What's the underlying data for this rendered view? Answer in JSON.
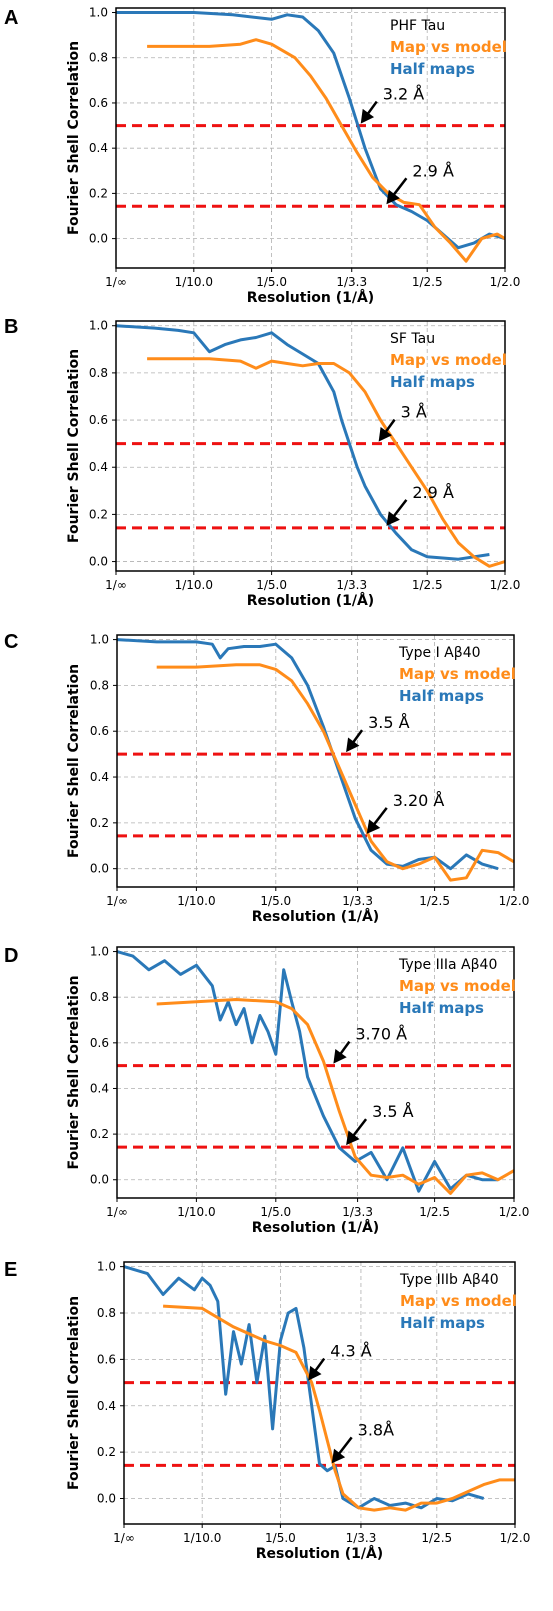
{
  "figure": {
    "colors": {
      "map_vs_model": "#ff8c1a",
      "half_maps": "#2a78b8",
      "threshold": "#ee1111",
      "grid": "#b0b0b0",
      "arrow": "#000000"
    }
  },
  "chart_data": [
    {
      "type": "line",
      "panel": "A",
      "legend_title": "PHF Tau",
      "legend_placement": "top-right",
      "xlabel": "Resolution (1/Å)",
      "ylabel": "Fourier Shell Correlation",
      "xlim": [
        0,
        0.5
      ],
      "ylim": [
        -0.13,
        1.02
      ],
      "x_ticks": [
        0,
        0.1,
        0.2,
        0.303,
        0.4,
        0.5
      ],
      "x_tick_labels": [
        "1/∞",
        "1/10.0",
        "1/5.0",
        "1/3.3",
        "1/2.5",
        "1/2.0"
      ],
      "y_ticks": [
        0,
        0.2,
        0.4,
        0.6,
        0.8,
        1.0
      ],
      "y_tick_labels": [
        "0.0",
        "0.2",
        "0.4",
        "0.6",
        "0.8",
        "1.0"
      ],
      "grid": true,
      "thresholds": [
        0.5,
        0.143
      ],
      "series": [
        {
          "name": "Map vs model",
          "x": [
            0.04,
            0.08,
            0.12,
            0.16,
            0.18,
            0.2,
            0.23,
            0.25,
            0.27,
            0.29,
            0.31,
            0.33,
            0.35,
            0.37,
            0.39,
            0.41,
            0.43,
            0.45,
            0.47,
            0.49,
            0.5
          ],
          "y": [
            0.85,
            0.85,
            0.85,
            0.86,
            0.88,
            0.86,
            0.8,
            0.72,
            0.62,
            0.5,
            0.38,
            0.27,
            0.2,
            0.16,
            0.15,
            0.05,
            -0.02,
            -0.1,
            0.0,
            0.02,
            0.0
          ]
        },
        {
          "name": "Half maps",
          "x": [
            0.0,
            0.05,
            0.1,
            0.15,
            0.2,
            0.22,
            0.24,
            0.26,
            0.28,
            0.3,
            0.32,
            0.34,
            0.36,
            0.38,
            0.4,
            0.42,
            0.44,
            0.46,
            0.48,
            0.5
          ],
          "y": [
            1.0,
            1.0,
            1.0,
            0.99,
            0.97,
            0.99,
            0.98,
            0.92,
            0.82,
            0.62,
            0.4,
            0.22,
            0.15,
            0.12,
            0.08,
            0.02,
            -0.04,
            -0.02,
            0.02,
            0.0
          ]
        }
      ],
      "annotations": [
        {
          "text": "3.2 Å",
          "x": 0.312,
          "y": 0.5
        },
        {
          "text": "2.9 Å",
          "x": 0.345,
          "y": 0.143
        }
      ]
    },
    {
      "type": "line",
      "panel": "B",
      "legend_title": "SF Tau",
      "legend_placement": "top-right",
      "xlabel": "Resolution (1/Å)",
      "ylabel": "Fourier Shell Correlation",
      "xlim": [
        0,
        0.5
      ],
      "ylim": [
        -0.04,
        1.02
      ],
      "x_ticks": [
        0,
        0.1,
        0.2,
        0.303,
        0.4,
        0.5
      ],
      "x_tick_labels": [
        "1/∞",
        "1/10.0",
        "1/5.0",
        "1/3.3",
        "1/2.5",
        "1/2.0"
      ],
      "y_ticks": [
        0,
        0.2,
        0.4,
        0.6,
        0.8,
        1.0
      ],
      "y_tick_labels": [
        "0.0",
        "0.2",
        "0.4",
        "0.6",
        "0.8",
        "1.0"
      ],
      "grid": true,
      "thresholds": [
        0.5,
        0.143
      ],
      "series": [
        {
          "name": "Map vs model",
          "x": [
            0.04,
            0.08,
            0.12,
            0.16,
            0.18,
            0.2,
            0.22,
            0.24,
            0.26,
            0.28,
            0.3,
            0.32,
            0.34,
            0.36,
            0.38,
            0.4,
            0.42,
            0.44,
            0.46,
            0.48,
            0.5
          ],
          "y": [
            0.86,
            0.86,
            0.86,
            0.85,
            0.82,
            0.85,
            0.84,
            0.83,
            0.84,
            0.84,
            0.8,
            0.72,
            0.6,
            0.5,
            0.4,
            0.3,
            0.18,
            0.08,
            0.02,
            -0.02,
            0.0
          ]
        },
        {
          "name": "Half maps",
          "x": [
            0.0,
            0.05,
            0.08,
            0.1,
            0.12,
            0.14,
            0.16,
            0.18,
            0.2,
            0.22,
            0.24,
            0.26,
            0.28,
            0.29,
            0.3,
            0.31,
            0.32,
            0.34,
            0.36,
            0.38,
            0.4,
            0.44,
            0.48
          ],
          "y": [
            1.0,
            0.99,
            0.98,
            0.97,
            0.89,
            0.92,
            0.94,
            0.95,
            0.97,
            0.92,
            0.88,
            0.84,
            0.72,
            0.6,
            0.5,
            0.4,
            0.32,
            0.2,
            0.12,
            0.05,
            0.02,
            0.01,
            0.03
          ]
        }
      ],
      "annotations": [
        {
          "text": "3 Å",
          "x": 0.335,
          "y": 0.5
        },
        {
          "text": "2.9 Å",
          "x": 0.345,
          "y": 0.143
        }
      ]
    },
    {
      "type": "line",
      "panel": "C",
      "legend_title": "Type I Aβ40",
      "legend_placement": "top-right",
      "xlabel": "Resolution (1/Å)",
      "ylabel": "Fourier Shell Correlation",
      "xlim": [
        0,
        0.5
      ],
      "ylim": [
        -0.08,
        1.02
      ],
      "x_ticks": [
        0,
        0.1,
        0.2,
        0.303,
        0.4,
        0.5
      ],
      "x_tick_labels": [
        "1/∞",
        "1/10.0",
        "1/5.0",
        "1/3.3",
        "1/2.5",
        "1/2.0"
      ],
      "y_ticks": [
        0,
        0.2,
        0.4,
        0.6,
        0.8,
        1.0
      ],
      "y_tick_labels": [
        "0.0",
        "0.2",
        "0.4",
        "0.6",
        "0.8",
        "1.0"
      ],
      "grid": true,
      "thresholds": [
        0.5,
        0.143
      ],
      "series": [
        {
          "name": "Map vs model",
          "x": [
            0.05,
            0.1,
            0.15,
            0.18,
            0.2,
            0.22,
            0.24,
            0.26,
            0.28,
            0.3,
            0.32,
            0.34,
            0.36,
            0.38,
            0.4,
            0.42,
            0.44,
            0.46,
            0.48,
            0.5
          ],
          "y": [
            0.88,
            0.88,
            0.89,
            0.89,
            0.87,
            0.82,
            0.72,
            0.6,
            0.44,
            0.28,
            0.12,
            0.03,
            0.0,
            0.02,
            0.05,
            -0.05,
            -0.04,
            0.08,
            0.07,
            0.03
          ]
        },
        {
          "name": "Half maps",
          "x": [
            0.0,
            0.05,
            0.1,
            0.12,
            0.13,
            0.14,
            0.16,
            0.18,
            0.2,
            0.22,
            0.24,
            0.26,
            0.28,
            0.3,
            0.32,
            0.34,
            0.36,
            0.38,
            0.4,
            0.42,
            0.44,
            0.46,
            0.48
          ],
          "y": [
            1.0,
            0.99,
            0.99,
            0.98,
            0.92,
            0.96,
            0.97,
            0.97,
            0.98,
            0.92,
            0.8,
            0.62,
            0.42,
            0.22,
            0.08,
            0.02,
            0.01,
            0.04,
            0.05,
            0.0,
            0.06,
            0.02,
            0.0
          ]
        }
      ],
      "annotations": [
        {
          "text": "3.5 Å",
          "x": 0.286,
          "y": 0.5
        },
        {
          "text": "3.20 Å",
          "x": 0.312,
          "y": 0.143
        }
      ]
    },
    {
      "type": "line",
      "panel": "D",
      "legend_title": "Type IIIa Aβ40",
      "legend_placement": "top-right",
      "xlabel": "Resolution (1/Å)",
      "ylabel": "Fourier Shell Correlation",
      "xlim": [
        0,
        0.5
      ],
      "ylim": [
        -0.08,
        1.02
      ],
      "x_ticks": [
        0,
        0.1,
        0.2,
        0.303,
        0.4,
        0.5
      ],
      "x_tick_labels": [
        "1/∞",
        "1/10.0",
        "1/5.0",
        "1/3.3",
        "1/2.5",
        "1/2.0"
      ],
      "y_ticks": [
        0,
        0.2,
        0.4,
        0.6,
        0.8,
        1.0
      ],
      "y_tick_labels": [
        "0.0",
        "0.2",
        "0.4",
        "0.6",
        "0.8",
        "1.0"
      ],
      "grid": true,
      "thresholds": [
        0.5,
        0.143
      ],
      "series": [
        {
          "name": "Map vs model",
          "x": [
            0.05,
            0.1,
            0.15,
            0.2,
            0.22,
            0.24,
            0.26,
            0.28,
            0.3,
            0.32,
            0.34,
            0.36,
            0.38,
            0.4,
            0.42,
            0.44,
            0.46,
            0.48,
            0.5
          ],
          "y": [
            0.77,
            0.78,
            0.79,
            0.78,
            0.75,
            0.68,
            0.52,
            0.3,
            0.1,
            0.02,
            0.01,
            0.02,
            -0.02,
            0.01,
            -0.06,
            0.02,
            0.03,
            0.0,
            0.04
          ]
        },
        {
          "name": "Half maps",
          "x": [
            0.0,
            0.02,
            0.04,
            0.06,
            0.08,
            0.1,
            0.12,
            0.13,
            0.14,
            0.15,
            0.16,
            0.17,
            0.18,
            0.19,
            0.2,
            0.21,
            0.22,
            0.23,
            0.24,
            0.26,
            0.28,
            0.3,
            0.32,
            0.34,
            0.36,
            0.38,
            0.4,
            0.42,
            0.44,
            0.46,
            0.48
          ],
          "y": [
            1.0,
            0.98,
            0.92,
            0.96,
            0.9,
            0.94,
            0.85,
            0.7,
            0.78,
            0.68,
            0.75,
            0.6,
            0.72,
            0.65,
            0.55,
            0.92,
            0.78,
            0.65,
            0.45,
            0.28,
            0.14,
            0.08,
            0.12,
            0.0,
            0.14,
            -0.05,
            0.08,
            -0.04,
            0.02,
            0.0,
            0.0
          ]
        }
      ],
      "annotations": [
        {
          "text": "3.70 Å",
          "x": 0.27,
          "y": 0.5
        },
        {
          "text": "3.5 Å",
          "x": 0.286,
          "y": 0.143
        }
      ]
    },
    {
      "type": "line",
      "panel": "E",
      "legend_title": "Type IIIb Aβ40",
      "legend_placement": "top-right",
      "xlabel": "Resolution (1/Å)",
      "ylabel": "Fourier Shell Correlation",
      "xlim": [
        0,
        0.5
      ],
      "ylim": [
        -0.11,
        1.02
      ],
      "x_ticks": [
        0,
        0.1,
        0.2,
        0.303,
        0.4,
        0.5
      ],
      "x_tick_labels": [
        "1/∞",
        "1/10.0",
        "1/5.0",
        "1/3.3",
        "1/2.5",
        "1/2.0"
      ],
      "y_ticks": [
        0,
        0.2,
        0.4,
        0.6,
        0.8,
        1.0
      ],
      "y_tick_labels": [
        "0.0",
        "0.2",
        "0.4",
        "0.6",
        "0.8",
        "1.0"
      ],
      "grid": true,
      "thresholds": [
        0.5,
        0.143
      ],
      "series": [
        {
          "name": "Map vs model",
          "x": [
            0.05,
            0.1,
            0.14,
            0.18,
            0.2,
            0.22,
            0.24,
            0.25,
            0.26,
            0.27,
            0.28,
            0.3,
            0.32,
            0.34,
            0.36,
            0.38,
            0.4,
            0.42,
            0.44,
            0.46,
            0.48,
            0.5
          ],
          "y": [
            0.83,
            0.82,
            0.74,
            0.68,
            0.66,
            0.63,
            0.5,
            0.38,
            0.25,
            0.12,
            0.02,
            -0.04,
            -0.05,
            -0.04,
            -0.05,
            -0.02,
            -0.02,
            0.0,
            0.03,
            0.06,
            0.08,
            0.08
          ]
        },
        {
          "name": "Half maps",
          "x": [
            0.0,
            0.03,
            0.05,
            0.07,
            0.09,
            0.1,
            0.11,
            0.12,
            0.13,
            0.14,
            0.15,
            0.16,
            0.17,
            0.18,
            0.19,
            0.2,
            0.21,
            0.22,
            0.23,
            0.24,
            0.25,
            0.26,
            0.27,
            0.28,
            0.3,
            0.32,
            0.34,
            0.36,
            0.38,
            0.4,
            0.42,
            0.44,
            0.46
          ],
          "y": [
            1.0,
            0.97,
            0.88,
            0.95,
            0.9,
            0.95,
            0.92,
            0.85,
            0.45,
            0.72,
            0.58,
            0.75,
            0.5,
            0.7,
            0.3,
            0.68,
            0.8,
            0.82,
            0.65,
            0.4,
            0.15,
            0.12,
            0.14,
            0.0,
            -0.04,
            0.0,
            -0.03,
            -0.02,
            -0.04,
            0.0,
            -0.01,
            0.02,
            0.0
          ]
        }
      ],
      "annotations": [
        {
          "text": "4.3 Å",
          "x": 0.233,
          "y": 0.5
        },
        {
          "text": "3.8Å",
          "x": 0.263,
          "y": 0.143
        }
      ]
    }
  ]
}
